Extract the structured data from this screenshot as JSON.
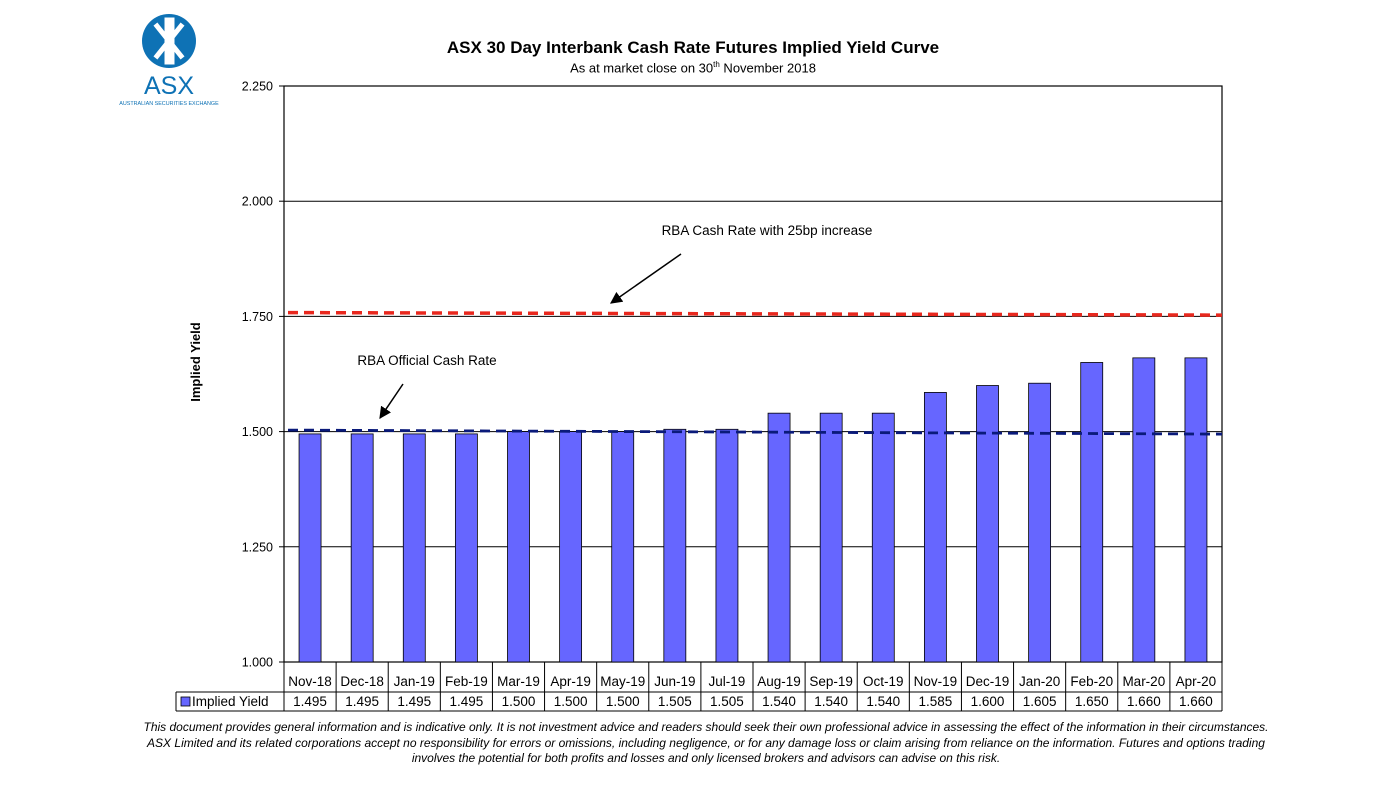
{
  "logo": {
    "text": "ASX",
    "subtext": "AUSTRALIAN SECURITIES EXCHANGE",
    "color": "#0e72b5"
  },
  "chart_data": {
    "type": "bar",
    "title": "ASX 30 Day Interbank Cash Rate Futures Implied Yield Curve",
    "subtitle_prefix": "As at market close on 30",
    "subtitle_sup": "th",
    "subtitle_suffix": " November 2018",
    "xlabel": "",
    "ylabel": "Implied Yield",
    "ylim": [
      1.0,
      2.25
    ],
    "yticks": [
      "1.000",
      "1.250",
      "1.500",
      "1.750",
      "2.000",
      "2.250"
    ],
    "grid": true,
    "categories": [
      "Nov-18",
      "Dec-18",
      "Jan-19",
      "Feb-19",
      "Mar-19",
      "Apr-19",
      "May-19",
      "Jun-19",
      "Jul-19",
      "Aug-19",
      "Sep-19",
      "Oct-19",
      "Nov-19",
      "Dec-19",
      "Jan-20",
      "Feb-20",
      "Mar-20",
      "Apr-20"
    ],
    "series": [
      {
        "name": "Implied Yield",
        "color": "#6666ff",
        "values": [
          "1.495",
          "1.495",
          "1.495",
          "1.495",
          "1.500",
          "1.500",
          "1.500",
          "1.505",
          "1.505",
          "1.540",
          "1.540",
          "1.540",
          "1.585",
          "1.600",
          "1.605",
          "1.650",
          "1.660",
          "1.660"
        ]
      }
    ],
    "reference_lines": [
      {
        "label": "RBA Cash Rate with 25bp increase",
        "value": 1.755,
        "color": "#e8281e"
      },
      {
        "label": "RBA Official Cash Rate",
        "value": 1.5,
        "color": "#0a1a7a"
      }
    ],
    "data_table": true
  },
  "disclaimer": "This document provides general information and is indicative only. It is not investment advice and readers should seek their own professional advice in assessing the effect of the information in their circumstances. ASX Limited and its related corporations accept no responsibility for errors or omissions, including negligence, or for any damage loss or claim arising from reliance on the information. Futures and options trading involves the potential for both profits and losses and only licensed brokers and advisors can advise on this risk."
}
